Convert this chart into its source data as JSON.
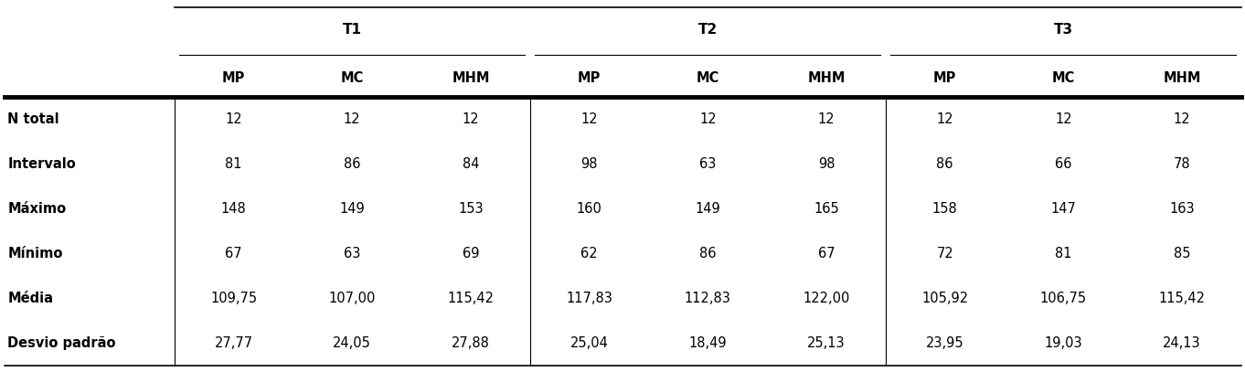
{
  "row_labels": [
    "N total",
    "Intervalo",
    "Máximo",
    "Mínimo",
    "Média",
    "Desvio padrão"
  ],
  "group_labels": [
    "T1",
    "T2",
    "T3"
  ],
  "col_labels": [
    "MP",
    "MC",
    "MHM",
    "MP",
    "MC",
    "MHM",
    "MP",
    "MC",
    "MHM"
  ],
  "data": [
    [
      "12",
      "12",
      "12",
      "12",
      "12",
      "12",
      "12",
      "12",
      "12"
    ],
    [
      "81",
      "86",
      "84",
      "98",
      "63",
      "98",
      "86",
      "66",
      "78"
    ],
    [
      "148",
      "149",
      "153",
      "160",
      "149",
      "165",
      "158",
      "147",
      "163"
    ],
    [
      "67",
      "63",
      "69",
      "62",
      "86",
      "67",
      "72",
      "81",
      "85"
    ],
    [
      "109,75",
      "107,00",
      "115,42",
      "117,83",
      "112,83",
      "122,00",
      "105,92",
      "106,75",
      "115,42"
    ],
    [
      "27,77",
      "24,05",
      "27,88",
      "25,04",
      "18,49",
      "25,13",
      "23,95",
      "19,03",
      "24,13"
    ]
  ],
  "background_color": "#ffffff",
  "text_color": "#000000",
  "font_size": 10.5,
  "header_font_size": 10.5,
  "group_divider_cols": [
    3,
    6
  ],
  "figsize": [
    13.62,
    4.07
  ],
  "dpi": 100
}
